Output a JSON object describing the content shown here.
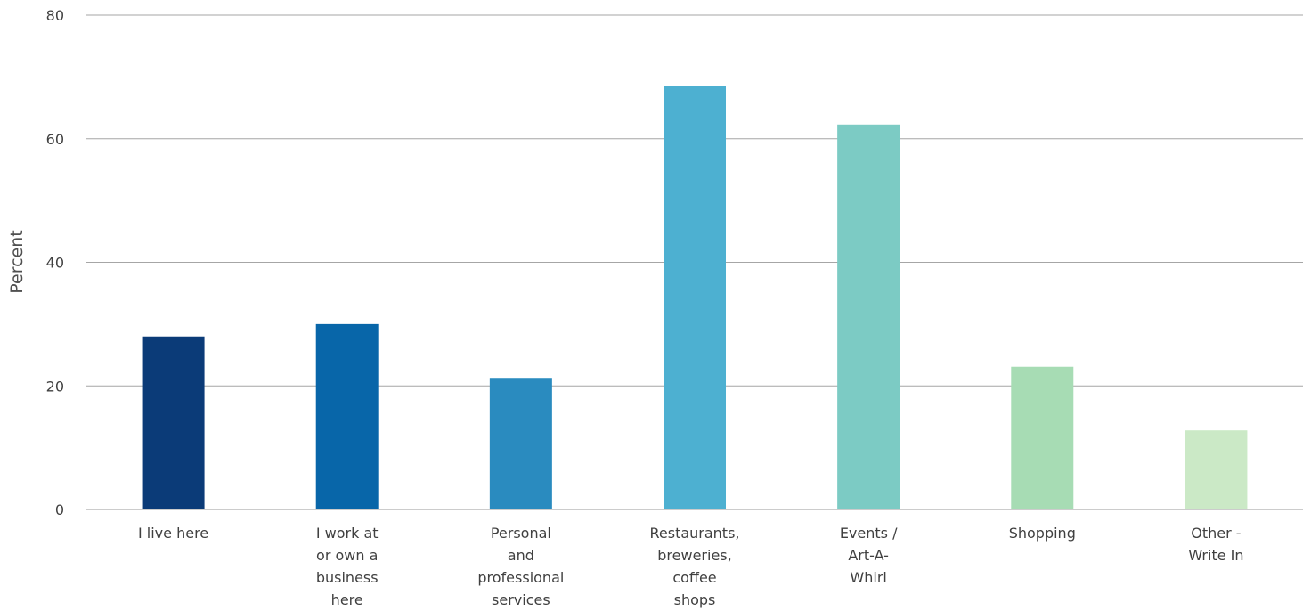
{
  "chart_data": {
    "type": "bar",
    "title": "",
    "xlabel": "",
    "ylabel": "Percent",
    "ylim": [
      0,
      80
    ],
    "yticks": [
      0,
      20,
      40,
      60,
      80
    ],
    "grid": true,
    "categories": [
      "I live here",
      "I work at or own a business here",
      "Personal and professional services",
      "Restaurants, breweries, coffee shops",
      "Events / Art-A-Whirl",
      "Shopping",
      "Other - Write In"
    ],
    "category_label_lines": [
      [
        "I live here"
      ],
      [
        "I work at",
        "or own a",
        "business",
        "here"
      ],
      [
        "Personal",
        "and",
        "professional",
        "services"
      ],
      [
        "Restaurants,",
        "breweries,",
        "coffee",
        "shops"
      ],
      [
        "Events /",
        "Art-A-",
        "Whirl"
      ],
      [
        "Shopping"
      ],
      [
        "Other -",
        "Write In"
      ]
    ],
    "values": [
      28,
      30,
      21.3,
      68.5,
      62.3,
      23.1,
      12.8
    ],
    "colors": [
      "#0b3b78",
      "#0866a9",
      "#2a8bbf",
      "#4db0d1",
      "#7ccbc4",
      "#a7dcb4",
      "#cbe9c6"
    ]
  }
}
